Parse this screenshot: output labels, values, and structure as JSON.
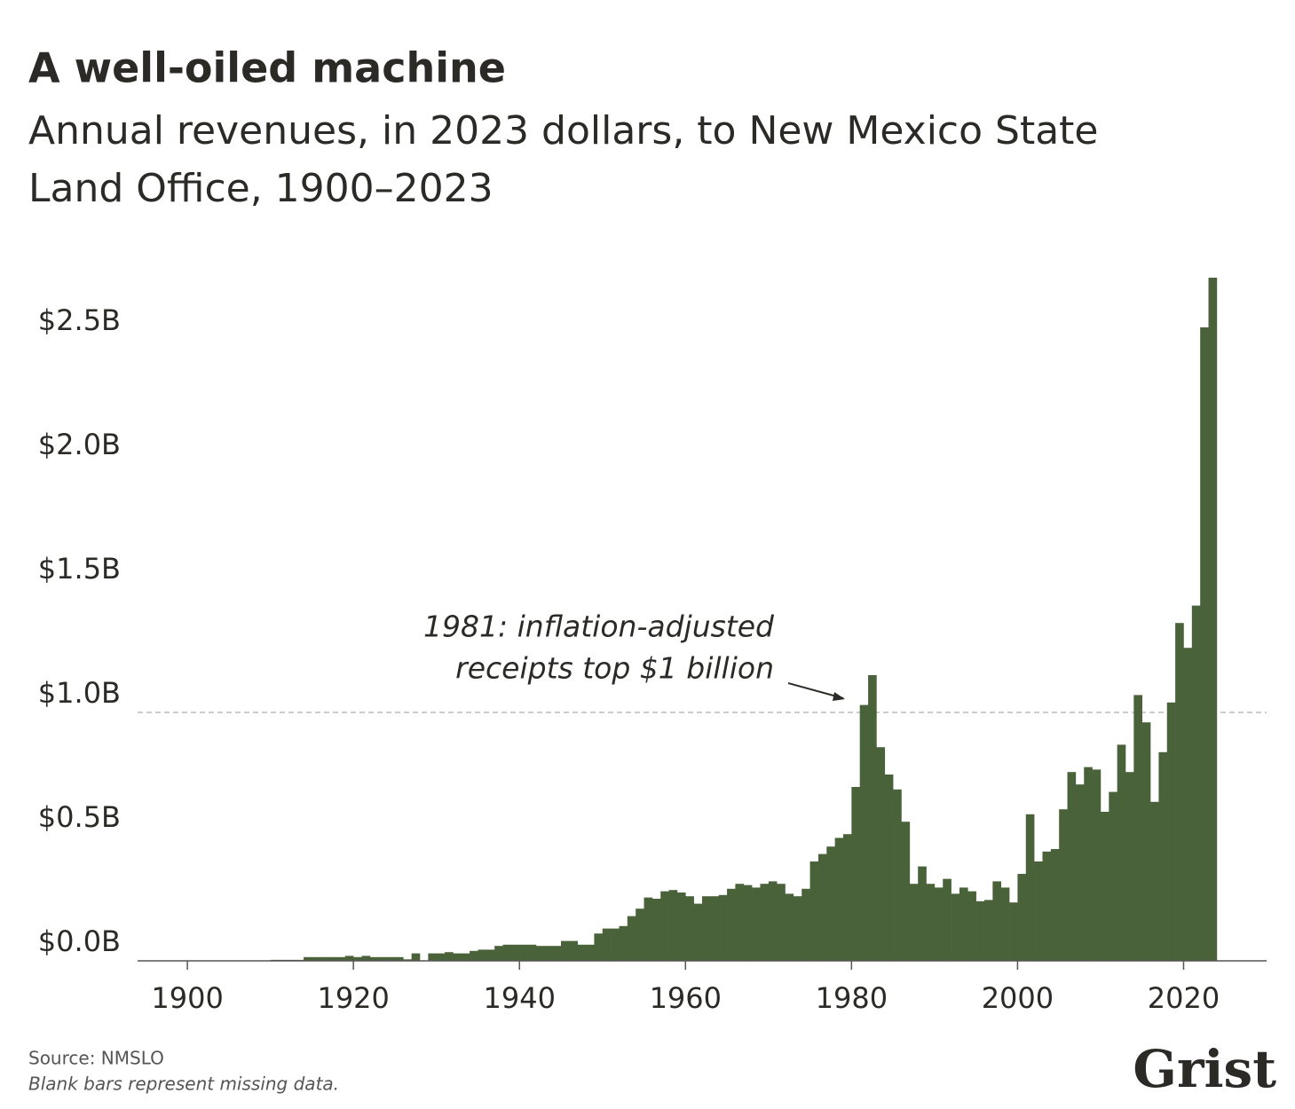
{
  "chart_data": {
    "type": "bar",
    "title": "A well-oiled machine",
    "subtitle": [
      "Annual revenues, in 2023 dollars, to New Mexico State",
      "Land Office, 1900–2023"
    ],
    "annotation": [
      "1981: inflation-adjusted",
      "receipts top $1 billion"
    ],
    "source": "Source: NMSLO",
    "note": "Blank bars represent missing data.",
    "logo": "Grist",
    "color": "#4a6239",
    "x": [
      1900,
      1901,
      1902,
      1903,
      1904,
      1905,
      1906,
      1907,
      1908,
      1909,
      1910,
      1911,
      1912,
      1913,
      1914,
      1915,
      1916,
      1917,
      1918,
      1919,
      1920,
      1921,
      1922,
      1923,
      1924,
      1925,
      1926,
      1927,
      1928,
      1929,
      1930,
      1931,
      1932,
      1933,
      1934,
      1935,
      1936,
      1937,
      1938,
      1939,
      1940,
      1941,
      1942,
      1943,
      1944,
      1945,
      1946,
      1947,
      1948,
      1949,
      1950,
      1951,
      1952,
      1953,
      1954,
      1955,
      1956,
      1957,
      1958,
      1959,
      1960,
      1961,
      1962,
      1963,
      1964,
      1965,
      1966,
      1967,
      1968,
      1969,
      1970,
      1971,
      1972,
      1973,
      1974,
      1975,
      1976,
      1977,
      1978,
      1979,
      1980,
      1981,
      1982,
      1983,
      1984,
      1985,
      1986,
      1987,
      1988,
      1989,
      1990,
      1991,
      1992,
      1993,
      1994,
      1995,
      1996,
      1997,
      1998,
      1999,
      2000,
      2001,
      2002,
      2003,
      2004,
      2005,
      2006,
      2007,
      2008,
      2009,
      2010,
      2011,
      2012,
      2013,
      2014,
      2015,
      2016,
      2017,
      2018,
      2019,
      2020,
      2021,
      2022,
      2023
    ],
    "values": [
      0.001,
      0.001,
      0.001,
      0.001,
      0.001,
      0.001,
      0.001,
      0.001,
      0.001,
      0.001,
      0.004,
      0.004,
      0.004,
      0.004,
      0.015,
      0.015,
      0.015,
      0.015,
      0.015,
      0.02,
      0.015,
      0.02,
      0.015,
      0.015,
      0.015,
      0.015,
      0.006,
      0.03,
      null,
      0.03,
      0.03,
      0.035,
      0.03,
      0.03,
      0.04,
      0.045,
      0.045,
      0.06,
      0.065,
      0.065,
      0.065,
      0.065,
      0.06,
      0.06,
      0.06,
      0.08,
      0.08,
      0.065,
      0.065,
      0.11,
      0.13,
      0.13,
      0.14,
      0.18,
      0.21,
      0.255,
      0.25,
      0.28,
      0.285,
      0.275,
      0.26,
      0.23,
      0.26,
      0.26,
      0.265,
      0.29,
      0.31,
      0.305,
      0.295,
      0.31,
      0.32,
      0.31,
      0.27,
      0.26,
      0.29,
      0.4,
      0.43,
      0.46,
      0.495,
      0.51,
      0.7,
      1.03,
      1.15,
      0.86,
      0.75,
      0.69,
      0.56,
      0.31,
      0.38,
      0.31,
      0.295,
      0.33,
      0.27,
      0.295,
      0.28,
      0.24,
      0.245,
      0.32,
      0.295,
      0.235,
      0.35,
      0.59,
      0.4,
      0.44,
      0.45,
      0.61,
      0.76,
      0.71,
      0.78,
      0.77,
      0.6,
      0.68,
      0.87,
      0.76,
      1.07,
      0.96,
      0.64,
      0.84,
      1.04,
      1.36,
      1.26,
      1.43,
      2.55,
      2.75
    ],
    "xlim": [
      1894,
      2030
    ],
    "xticks": [
      1900,
      1920,
      1940,
      1960,
      1980,
      2000,
      2020
    ],
    "ylim": [
      0,
      2.8
    ],
    "yticks": [
      {
        "value": 0,
        "label": "$0.0B"
      },
      {
        "value": 0.5,
        "label": "$0.5B"
      },
      {
        "value": 1,
        "label": "$1.0B"
      },
      {
        "value": 1.5,
        "label": "$1.5B"
      },
      {
        "value": 2,
        "label": "$2.0B"
      },
      {
        "value": 2.5,
        "label": "$2.5B"
      }
    ],
    "reference_line": 1
  }
}
